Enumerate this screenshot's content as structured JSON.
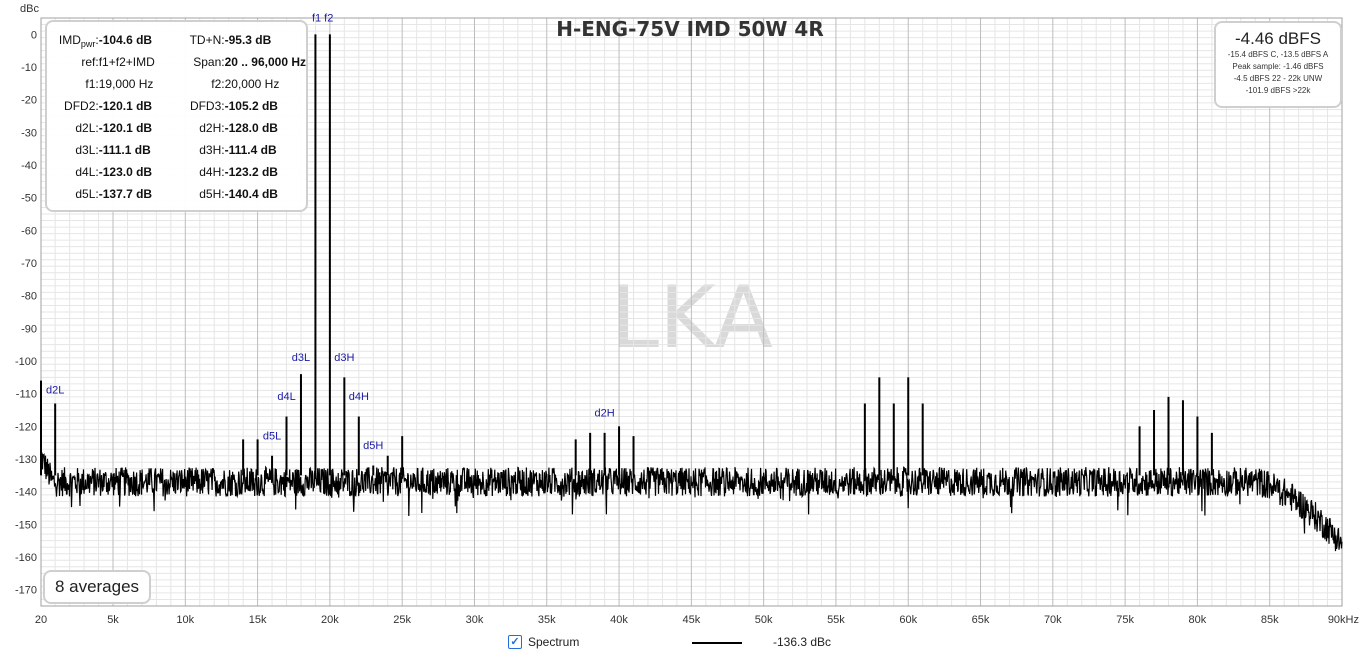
{
  "chart_data": {
    "type": "line",
    "title": "H-ENG-75V IMD 50W 4R",
    "ylabel": "dBc",
    "xunit_label": "90kHz",
    "xlim": [
      20,
      90000
    ],
    "ylim": [
      -175,
      5
    ],
    "y_ticks": [
      0,
      -10,
      -20,
      -30,
      -40,
      -50,
      -60,
      -70,
      -80,
      -90,
      -100,
      -110,
      -120,
      -130,
      -140,
      -150,
      -160,
      -170
    ],
    "x_ticks": [
      {
        "value": 20,
        "label": "20"
      },
      {
        "value": 5000,
        "label": "5k"
      },
      {
        "value": 10000,
        "label": "10k"
      },
      {
        "value": 15000,
        "label": "15k"
      },
      {
        "value": 20000,
        "label": "20k"
      },
      {
        "value": 25000,
        "label": "25k"
      },
      {
        "value": 30000,
        "label": "30k"
      },
      {
        "value": 35000,
        "label": "35k"
      },
      {
        "value": 40000,
        "label": "40k"
      },
      {
        "value": 45000,
        "label": "45k"
      },
      {
        "value": 50000,
        "label": "50k"
      },
      {
        "value": 55000,
        "label": "55k"
      },
      {
        "value": 60000,
        "label": "60k"
      },
      {
        "value": 65000,
        "label": "65k"
      },
      {
        "value": 70000,
        "label": "70k"
      },
      {
        "value": 75000,
        "label": "75k"
      },
      {
        "value": 80000,
        "label": "80k"
      },
      {
        "value": 85000,
        "label": "85k"
      },
      {
        "value": 90000,
        "label": "90kHz"
      }
    ],
    "grid": true,
    "watermark": "LKA",
    "noise_floor": -137,
    "series": [
      {
        "name": "Spectrum",
        "color": "#000000",
        "peaks": [
          {
            "x": 19000,
            "y": 0
          },
          {
            "x": 20000,
            "y": 0
          },
          {
            "x": 18000,
            "y": -104
          },
          {
            "x": 21000,
            "y": -105
          },
          {
            "x": 17000,
            "y": -117
          },
          {
            "x": 22000,
            "y": -117
          },
          {
            "x": 16000,
            "y": -129
          },
          {
            "x": 23000,
            "y": -132
          },
          {
            "x": 15000,
            "y": -124
          },
          {
            "x": 14000,
            "y": -124
          },
          {
            "x": 24000,
            "y": -129
          },
          {
            "x": 25000,
            "y": -123
          },
          {
            "x": 1000,
            "y": -113
          },
          {
            "x": 20,
            "y": -106
          },
          {
            "x": 37000,
            "y": -124
          },
          {
            "x": 38000,
            "y": -122
          },
          {
            "x": 39000,
            "y": -122
          },
          {
            "x": 40000,
            "y": -120
          },
          {
            "x": 41000,
            "y": -123
          },
          {
            "x": 57000,
            "y": -113
          },
          {
            "x": 58000,
            "y": -105
          },
          {
            "x": 59000,
            "y": -113
          },
          {
            "x": 60000,
            "y": -105
          },
          {
            "x": 61000,
            "y": -113
          },
          {
            "x": 76000,
            "y": -120
          },
          {
            "x": 77000,
            "y": -115
          },
          {
            "x": 78000,
            "y": -111
          },
          {
            "x": 79000,
            "y": -112
          },
          {
            "x": 80000,
            "y": -117
          },
          {
            "x": 81000,
            "y": -122
          }
        ]
      }
    ],
    "annotations": [
      {
        "label": "f1 f2",
        "x": 19500,
        "y": 4
      },
      {
        "label": "d2L",
        "x": 1000,
        "y": -110
      },
      {
        "label": "d3L",
        "x": 18000,
        "y": -100
      },
      {
        "label": "d3H",
        "x": 21000,
        "y": -100
      },
      {
        "label": "d4L",
        "x": 17000,
        "y": -112
      },
      {
        "label": "d4H",
        "x": 22000,
        "y": -112
      },
      {
        "label": "d5L",
        "x": 16000,
        "y": -124
      },
      {
        "label": "d5H",
        "x": 23000,
        "y": -127
      },
      {
        "label": "d2H",
        "x": 39000,
        "y": -117
      }
    ]
  },
  "imd_panel": {
    "rows": [
      {
        "l1": "IMD",
        "l1_sub": "pwr",
        "v1": "-104.6 dB",
        "l2": "TD+N:",
        "v2": "-95.3 dB",
        "v1_bold": true,
        "v2_bold": true
      },
      {
        "l1": "ref:",
        "v1": "f1+f2+IMD",
        "l2": "Span:",
        "v2": "20 .. 96,000 Hz",
        "v1_bold": false,
        "v2_bold": true
      },
      {
        "l1": "f1:",
        "v1": "19,000 Hz",
        "l2": "f2:",
        "v2": "20,000 Hz",
        "v1_bold": false,
        "v2_bold": false
      },
      {
        "l1": "DFD2:",
        "v1": "-120.1 dB",
        "l2": "DFD3:",
        "v2": "-105.2 dB",
        "v1_bold": true,
        "v2_bold": true
      },
      {
        "l1": "d2L:",
        "v1": "-120.1 dB",
        "l2": "d2H:",
        "v2": "-128.0 dB",
        "v1_bold": true,
        "v2_bold": true
      },
      {
        "l1": "d3L:",
        "v1": "-111.1 dB",
        "l2": "d3H:",
        "v2": "-111.4 dB",
        "v1_bold": true,
        "v2_bold": true
      },
      {
        "l1": "d4L:",
        "v1": "-123.0 dB",
        "l2": "d4H:",
        "v2": "-123.2 dB",
        "v1_bold": true,
        "v2_bold": true
      },
      {
        "l1": "d5L:",
        "v1": "-137.7 dB",
        "l2": "d5H:",
        "v2": "-140.4 dB",
        "v1_bold": true,
        "v2_bold": true
      }
    ]
  },
  "level_panel": {
    "main": "-4.46 dBFS",
    "lines": [
      "-15.4 dBFS C, -13.5 dBFS A",
      "Peak sample: -1.46 dBFS",
      "-4.5 dBFS 22 - 22k UNW",
      "-101.9 dBFS >22k"
    ]
  },
  "averages": "8 averages",
  "legend": {
    "checked": true,
    "check_glyph": "✓",
    "name": "Spectrum",
    "value": "-136.3 dBc"
  }
}
